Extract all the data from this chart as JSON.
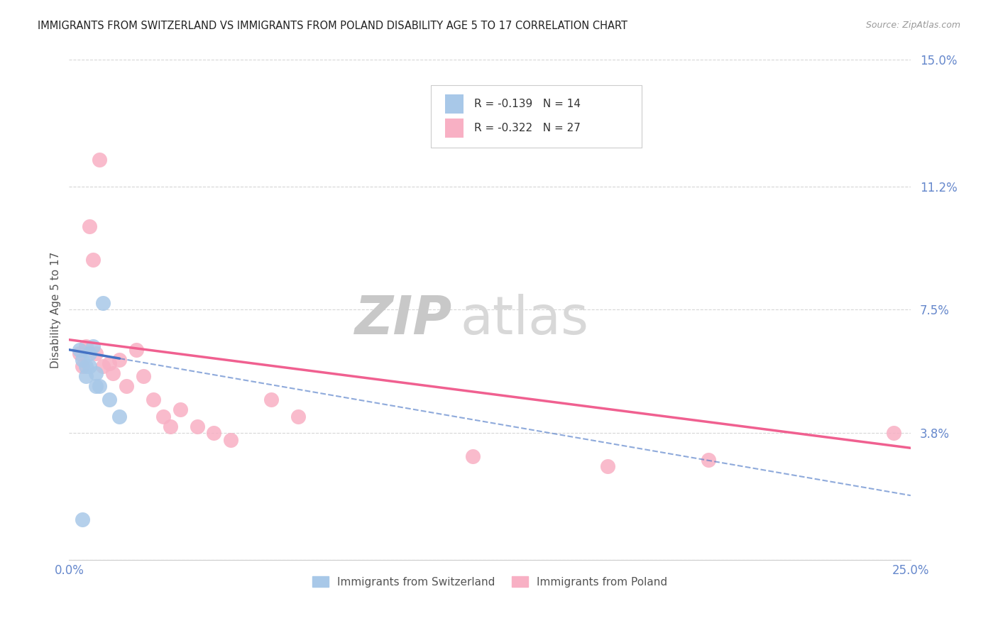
{
  "title": "IMMIGRANTS FROM SWITZERLAND VS IMMIGRANTS FROM POLAND DISABILITY AGE 5 TO 17 CORRELATION CHART",
  "source": "Source: ZipAtlas.com",
  "ylabel": "Disability Age 5 to 17",
  "xmin": 0.0,
  "xmax": 0.25,
  "ymin": 0.0,
  "ymax": 0.15,
  "ytick_positions": [
    0.0,
    0.038,
    0.075,
    0.112,
    0.15
  ],
  "ytick_labels": [
    "",
    "3.8%",
    "7.5%",
    "11.2%",
    "15.0%"
  ],
  "xtick_positions": [
    0.0,
    0.05,
    0.1,
    0.15,
    0.2,
    0.25
  ],
  "xtick_labels": [
    "0.0%",
    "",
    "",
    "",
    "",
    "25.0%"
  ],
  "switzerland_x": [
    0.003,
    0.004,
    0.005,
    0.005,
    0.006,
    0.006,
    0.007,
    0.008,
    0.008,
    0.009,
    0.01,
    0.012,
    0.015,
    0.004
  ],
  "switzerland_y": [
    0.063,
    0.06,
    0.058,
    0.055,
    0.062,
    0.058,
    0.064,
    0.056,
    0.052,
    0.052,
    0.077,
    0.048,
    0.043,
    0.012
  ],
  "poland_x": [
    0.003,
    0.004,
    0.005,
    0.006,
    0.007,
    0.008,
    0.009,
    0.01,
    0.012,
    0.013,
    0.015,
    0.017,
    0.02,
    0.022,
    0.025,
    0.028,
    0.03,
    0.033,
    0.038,
    0.043,
    0.048,
    0.06,
    0.068,
    0.12,
    0.16,
    0.19,
    0.245
  ],
  "poland_y": [
    0.062,
    0.058,
    0.064,
    0.1,
    0.09,
    0.062,
    0.12,
    0.058,
    0.059,
    0.056,
    0.06,
    0.052,
    0.063,
    0.055,
    0.048,
    0.043,
    0.04,
    0.045,
    0.04,
    0.038,
    0.036,
    0.048,
    0.043,
    0.031,
    0.028,
    0.03,
    0.038
  ],
  "switzerland_color": "#a8c8e8",
  "poland_color": "#f8b0c4",
  "switzerland_line_color": "#4472c4",
  "poland_line_color": "#f06090",
  "switzerland_R": -0.139,
  "switzerland_N": 14,
  "poland_R": -0.322,
  "poland_N": 27,
  "background_color": "#ffffff",
  "grid_color": "#cccccc",
  "title_color": "#222222",
  "axis_tick_color": "#6688cc",
  "legend_label1": "Immigrants from Switzerland",
  "legend_label2": "Immigrants from Poland"
}
